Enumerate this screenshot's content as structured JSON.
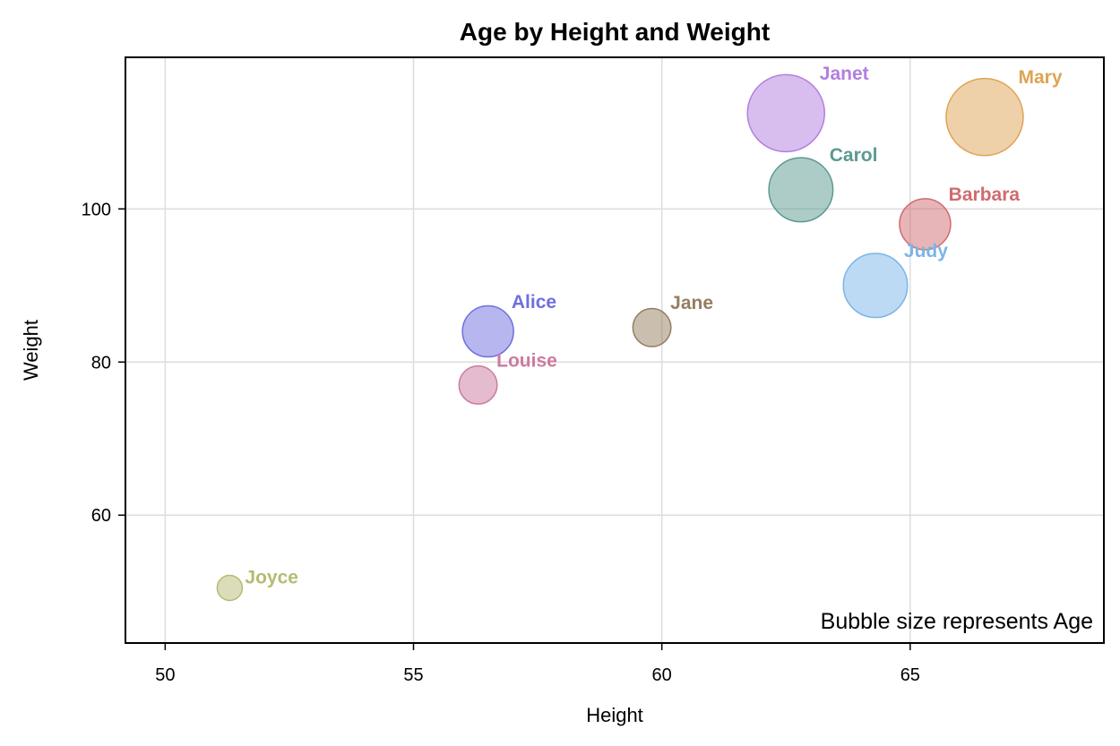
{
  "chart_data": {
    "type": "scatter",
    "subtype": "bubble",
    "title": "Age by Height and Weight",
    "xlabel": "Height",
    "ylabel": "Weight",
    "xlim": [
      49.2,
      68.9
    ],
    "ylim": [
      43.3,
      119.8
    ],
    "xticks": [
      50,
      55,
      60,
      65
    ],
    "yticks": [
      60,
      80,
      100
    ],
    "grid": true,
    "note": "Bubble size represents Age",
    "size_variable": "Age",
    "points": [
      {
        "label": "Joyce",
        "x": 51.3,
        "y": 50.5,
        "size": 11,
        "color": "#b5bb72",
        "label_offset": "right"
      },
      {
        "label": "Louise",
        "x": 56.3,
        "y": 77.0,
        "size": 12,
        "color": "#cc7aa0",
        "label_offset": "upper-right"
      },
      {
        "label": "Alice",
        "x": 56.5,
        "y": 84.0,
        "size": 13,
        "color": "#6f6fdf",
        "label_offset": "upper-right"
      },
      {
        "label": "Jane",
        "x": 59.8,
        "y": 84.5,
        "size": 12,
        "color": "#957d60",
        "label_offset": "upper-right"
      },
      {
        "label": "Janet",
        "x": 62.5,
        "y": 112.5,
        "size": 15,
        "color": "#b27ee0",
        "label_offset": "upper-right"
      },
      {
        "label": "Carol",
        "x": 62.8,
        "y": 102.5,
        "size": 14,
        "color": "#5b9a92",
        "label_offset": "upper-right"
      },
      {
        "label": "Judy",
        "x": 64.3,
        "y": 90.0,
        "size": 14,
        "color": "#7ab5e8",
        "label_offset": "upper-right"
      },
      {
        "label": "Barbara",
        "x": 65.3,
        "y": 98.0,
        "size": 13,
        "color": "#cf6b70",
        "label_offset": "upper-right"
      },
      {
        "label": "Mary",
        "x": 66.5,
        "y": 112.0,
        "size": 15,
        "color": "#dea453",
        "label_offset": "upper-right"
      }
    ]
  }
}
